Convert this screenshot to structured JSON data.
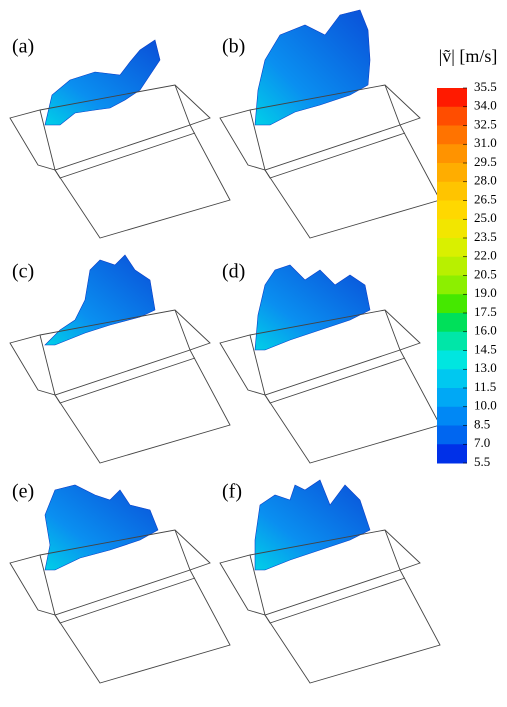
{
  "panels": [
    {
      "label": "(a)"
    },
    {
      "label": "(b)"
    },
    {
      "label": "(c)"
    },
    {
      "label": "(d)"
    },
    {
      "label": "(e)"
    },
    {
      "label": "(f)"
    }
  ],
  "colorbar": {
    "title": "|ṽ| [m/s]",
    "ticks": [
      35.5,
      {
        "value": 34,
        "label": "34.0"
      },
      32.5,
      {
        "value": 31,
        "label": "31.0"
      },
      29.5,
      {
        "value": 28,
        "label": "28.0"
      },
      26.5,
      {
        "value": 25,
        "label": "25.0"
      },
      23.5,
      {
        "value": 22,
        "label": "22.0"
      },
      20.5,
      {
        "value": 19,
        "label": "19.0"
      },
      17.5,
      {
        "value": 16,
        "label": "16.0"
      },
      14.5,
      {
        "value": 13,
        "label": "13.0"
      },
      11.5,
      {
        "value": 10,
        "label": "10.0"
      },
      8.5,
      {
        "value": 7,
        "label": "7.0"
      },
      5.5
    ],
    "colors": [
      "#ff1a00",
      "#ff4d00",
      "#ff7300",
      "#ff9300",
      "#ffad00",
      "#ffc400",
      "#ffd800",
      "#f2e600",
      "#d9f000",
      "#b8f000",
      "#8cef00",
      "#45e800",
      "#00e05a",
      "#00e6a8",
      "#00e6e0",
      "#00c8f0",
      "#00a8f5",
      "#0088f5",
      "#0066f0",
      "#0030e8"
    ]
  }
}
